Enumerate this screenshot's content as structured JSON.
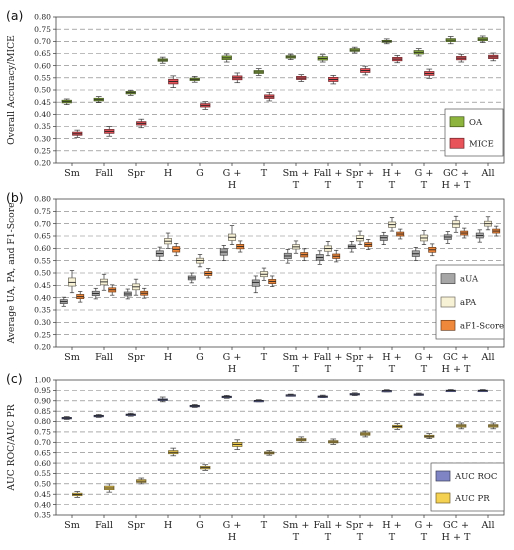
{
  "chart_data": [
    {
      "type": "box",
      "panel_label": "(a)",
      "ylabel": "Overall Accuracy/MICE",
      "ylim": [
        0.2,
        0.8
      ],
      "yticks": [
        "0.20",
        "0.25",
        "0.30",
        "0.35",
        "0.40",
        "0.45",
        "0.50",
        "0.55",
        "0.60",
        "0.65",
        "0.70",
        "0.75",
        "0.80"
      ],
      "grid": "horizontal-dashed",
      "legend_position": "bottom-right",
      "categories": [
        [
          "Sm"
        ],
        [
          "Fall"
        ],
        [
          "Spr"
        ],
        [
          "H"
        ],
        [
          "G"
        ],
        [
          "G +",
          "H"
        ],
        [
          "T"
        ],
        [
          "Sm +",
          "T"
        ],
        [
          "Fall +",
          "T"
        ],
        [
          "Spr +",
          "T"
        ],
        [
          "H +",
          "T"
        ],
        [
          "G +",
          "T"
        ],
        [
          "GC +",
          "H + T"
        ],
        [
          "All"
        ]
      ],
      "series": [
        {
          "name": "OA",
          "color": "#8db43c",
          "boxes": [
            [
              0.44,
              0.447,
              0.452,
              0.458,
              0.463
            ],
            [
              0.448,
              0.455,
              0.46,
              0.466,
              0.473
            ],
            [
              0.478,
              0.484,
              0.489,
              0.494,
              0.498
            ],
            [
              0.61,
              0.618,
              0.623,
              0.628,
              0.635
            ],
            [
              0.532,
              0.539,
              0.544,
              0.549,
              0.556
            ],
            [
              0.615,
              0.625,
              0.632,
              0.64,
              0.648
            ],
            [
              0.56,
              0.568,
              0.574,
              0.58,
              0.588
            ],
            [
              0.625,
              0.631,
              0.636,
              0.641,
              0.647
            ],
            [
              0.615,
              0.623,
              0.63,
              0.637,
              0.645
            ],
            [
              0.652,
              0.659,
              0.664,
              0.67,
              0.676
            ],
            [
              0.69,
              0.696,
              0.7,
              0.704,
              0.71
            ],
            [
              0.64,
              0.648,
              0.655,
              0.662,
              0.67
            ],
            [
              0.69,
              0.699,
              0.705,
              0.711,
              0.72
            ],
            [
              0.695,
              0.703,
              0.709,
              0.715,
              0.722
            ]
          ]
        },
        {
          "name": "MICE",
          "color": "#e8535a",
          "boxes": [
            [
              0.305,
              0.314,
              0.32,
              0.327,
              0.335
            ],
            [
              0.31,
              0.322,
              0.33,
              0.338,
              0.35
            ],
            [
              0.345,
              0.356,
              0.363,
              0.37,
              0.38
            ],
            [
              0.51,
              0.525,
              0.535,
              0.544,
              0.558
            ],
            [
              0.42,
              0.43,
              0.437,
              0.444,
              0.452
            ],
            [
              0.53,
              0.542,
              0.55,
              0.558,
              0.57
            ],
            [
              0.455,
              0.465,
              0.472,
              0.48,
              0.49
            ],
            [
              0.535,
              0.543,
              0.549,
              0.556,
              0.563
            ],
            [
              0.525,
              0.535,
              0.543,
              0.552,
              0.56
            ],
            [
              0.562,
              0.572,
              0.58,
              0.588,
              0.598
            ],
            [
              0.612,
              0.62,
              0.627,
              0.634,
              0.642
            ],
            [
              0.548,
              0.56,
              0.568,
              0.576,
              0.586
            ],
            [
              0.615,
              0.624,
              0.631,
              0.638,
              0.647
            ],
            [
              0.62,
              0.629,
              0.636,
              0.643,
              0.652
            ]
          ]
        }
      ]
    },
    {
      "type": "box",
      "panel_label": "(b)",
      "ylabel": "Average UA, PA, and F1-Score",
      "ylim": [
        0.2,
        0.8
      ],
      "yticks": [
        "0.20",
        "0.25",
        "0.30",
        "0.35",
        "0.40",
        "0.45",
        "0.50",
        "0.55",
        "0.60",
        "0.65",
        "0.70",
        "0.75",
        "0.80"
      ],
      "grid": "horizontal-dashed",
      "legend_position": "bottom-right",
      "categories": [
        [
          "Sm"
        ],
        [
          "Fall"
        ],
        [
          "Spr"
        ],
        [
          "H"
        ],
        [
          "G"
        ],
        [
          "G +",
          "H"
        ],
        [
          "T"
        ],
        [
          "Sm +",
          "T"
        ],
        [
          "Fall +",
          "T"
        ],
        [
          "Spr +",
          "T"
        ],
        [
          "H +",
          "T"
        ],
        [
          "G +",
          "T"
        ],
        [
          "GC +",
          "H + T"
        ],
        [
          "All"
        ]
      ],
      "series": [
        {
          "name": "aUA",
          "color": "#a6a6a6",
          "boxes": [
            [
              0.365,
              0.376,
              0.384,
              0.392,
              0.402
            ],
            [
              0.395,
              0.408,
              0.417,
              0.426,
              0.438
            ],
            [
              0.395,
              0.407,
              0.415,
              0.423,
              0.435
            ],
            [
              0.55,
              0.568,
              0.579,
              0.59,
              0.605
            ],
            [
              0.46,
              0.472,
              0.48,
              0.488,
              0.5
            ],
            [
              0.55,
              0.572,
              0.585,
              0.598,
              0.612
            ],
            [
              0.42,
              0.446,
              0.462,
              0.472,
              0.488
            ],
            [
              0.54,
              0.558,
              0.569,
              0.58,
              0.596
            ],
            [
              0.535,
              0.552,
              0.563,
              0.575,
              0.59
            ],
            [
              0.585,
              0.599,
              0.607,
              0.614,
              0.628
            ],
            [
              0.615,
              0.632,
              0.643,
              0.652,
              0.665
            ],
            [
              0.55,
              0.567,
              0.578,
              0.59,
              0.604
            ],
            [
              0.62,
              0.636,
              0.646,
              0.655,
              0.668
            ],
            [
              0.625,
              0.642,
              0.652,
              0.662,
              0.675
            ]
          ]
        },
        {
          "name": "aPA",
          "color": "#f7f1d6",
          "boxes": [
            [
              0.42,
              0.447,
              0.462,
              0.48,
              0.51
            ],
            [
              0.43,
              0.452,
              0.464,
              0.475,
              0.495
            ],
            [
              0.41,
              0.432,
              0.444,
              0.456,
              0.475
            ],
            [
              0.6,
              0.618,
              0.629,
              0.64,
              0.662
            ],
            [
              0.525,
              0.54,
              0.551,
              0.56,
              0.575
            ],
            [
              0.615,
              0.632,
              0.645,
              0.658,
              0.692
            ],
            [
              0.47,
              0.485,
              0.495,
              0.506,
              0.52
            ],
            [
              0.58,
              0.597,
              0.606,
              0.615,
              0.63
            ],
            [
              0.57,
              0.588,
              0.599,
              0.61,
              0.628
            ],
            [
              0.615,
              0.63,
              0.64,
              0.652,
              0.67
            ],
            [
              0.67,
              0.685,
              0.696,
              0.707,
              0.725
            ],
            [
              0.615,
              0.63,
              0.642,
              0.654,
              0.672
            ],
            [
              0.665,
              0.685,
              0.699,
              0.712,
              0.73
            ],
            [
              0.675,
              0.69,
              0.7,
              0.71,
              0.728
            ]
          ]
        },
        {
          "name": "aF1-Score",
          "color": "#f0883b",
          "boxes": [
            [
              0.382,
              0.396,
              0.404,
              0.413,
              0.425
            ],
            [
              0.41,
              0.423,
              0.432,
              0.44,
              0.452
            ],
            [
              0.398,
              0.41,
              0.418,
              0.426,
              0.438
            ],
            [
              0.57,
              0.585,
              0.596,
              0.607,
              0.62
            ],
            [
              0.48,
              0.49,
              0.498,
              0.506,
              0.518
            ],
            [
              0.585,
              0.598,
              0.607,
              0.616,
              0.63
            ],
            [
              0.445,
              0.457,
              0.466,
              0.474,
              0.488
            ],
            [
              0.55,
              0.565,
              0.574,
              0.583,
              0.598
            ],
            [
              0.545,
              0.559,
              0.568,
              0.577,
              0.592
            ],
            [
              0.595,
              0.607,
              0.615,
              0.623,
              0.636
            ],
            [
              0.638,
              0.65,
              0.658,
              0.666,
              0.678
            ],
            [
              0.57,
              0.584,
              0.594,
              0.604,
              0.618
            ],
            [
              0.642,
              0.654,
              0.662,
              0.67,
              0.682
            ],
            [
              0.65,
              0.662,
              0.67,
              0.678,
              0.69
            ]
          ]
        }
      ]
    },
    {
      "type": "box",
      "panel_label": "(c)",
      "ylabel": "AUC ROC/AUC PR",
      "ylim": [
        0.35,
        1.0
      ],
      "yticks": [
        "0.35",
        "0.40",
        "0.45",
        "0.50",
        "0.55",
        "0.60",
        "0.65",
        "0.70",
        "0.75",
        "0.80",
        "0.85",
        "0.90",
        "0.95",
        "1.00"
      ],
      "grid": "horizontal-dashed",
      "legend_position": "bottom-right",
      "categories": [
        [
          "Sm"
        ],
        [
          "Fall"
        ],
        [
          "Spr"
        ],
        [
          "H"
        ],
        [
          "G"
        ],
        [
          "G +",
          "H"
        ],
        [
          "T"
        ],
        [
          "Sm +",
          "T"
        ],
        [
          "Fall +",
          "T"
        ],
        [
          "Spr +",
          "T"
        ],
        [
          "H +",
          "T"
        ],
        [
          "G +",
          "T"
        ],
        [
          "GC +",
          "H + T"
        ],
        [
          "All"
        ]
      ],
      "series": [
        {
          "name": "AUC ROC",
          "color": "#7f85c4",
          "boxes": [
            [
              0.81,
              0.814,
              0.817,
              0.82,
              0.824
            ],
            [
              0.82,
              0.824,
              0.827,
              0.83,
              0.834
            ],
            [
              0.826,
              0.83,
              0.833,
              0.836,
              0.84
            ],
            [
              0.895,
              0.901,
              0.905,
              0.909,
              0.918
            ],
            [
              0.868,
              0.872,
              0.875,
              0.878,
              0.882
            ],
            [
              0.912,
              0.916,
              0.919,
              0.922,
              0.926
            ],
            [
              0.895,
              0.898,
              0.9,
              0.902,
              0.905
            ],
            [
              0.922,
              0.925,
              0.927,
              0.929,
              0.932
            ],
            [
              0.915,
              0.918,
              0.921,
              0.923,
              0.927
            ],
            [
              0.925,
              0.929,
              0.932,
              0.935,
              0.938
            ],
            [
              0.943,
              0.946,
              0.948,
              0.95,
              0.953
            ],
            [
              0.926,
              0.929,
              0.931,
              0.933,
              0.937
            ],
            [
              0.944,
              0.947,
              0.949,
              0.951,
              0.954
            ],
            [
              0.944,
              0.947,
              0.949,
              0.951,
              0.954
            ]
          ]
        },
        {
          "name": "AUC PR",
          "color": "#f5d152",
          "boxes": [
            [
              0.435,
              0.443,
              0.449,
              0.455,
              0.463
            ],
            [
              0.46,
              0.472,
              0.48,
              0.489,
              0.5
            ],
            [
              0.5,
              0.507,
              0.513,
              0.52,
              0.528
            ],
            [
              0.635,
              0.645,
              0.652,
              0.66,
              0.672
            ],
            [
              0.565,
              0.572,
              0.578,
              0.584,
              0.592
            ],
            [
              0.665,
              0.68,
              0.69,
              0.699,
              0.712
            ],
            [
              0.638,
              0.644,
              0.649,
              0.654,
              0.66
            ],
            [
              0.7,
              0.707,
              0.712,
              0.718,
              0.726
            ],
            [
              0.69,
              0.697,
              0.702,
              0.708,
              0.716
            ],
            [
              0.726,
              0.734,
              0.74,
              0.746,
              0.754
            ],
            [
              0.762,
              0.77,
              0.776,
              0.782,
              0.79
            ],
            [
              0.718,
              0.724,
              0.729,
              0.734,
              0.742
            ],
            [
              0.765,
              0.773,
              0.779,
              0.785,
              0.793
            ],
            [
              0.765,
              0.773,
              0.779,
              0.785,
              0.793
            ]
          ]
        }
      ]
    }
  ]
}
